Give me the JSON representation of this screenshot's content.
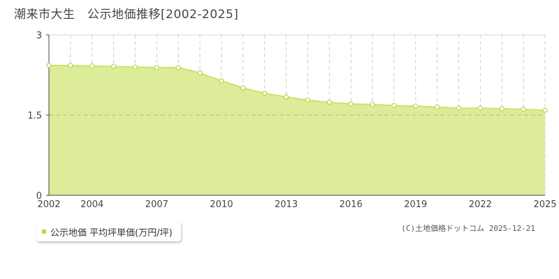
{
  "title": "潮来市大生　公示地価推移[2002-2025]",
  "legend": {
    "label": "公示地価 平均坪単価(万円/坪)",
    "color": "#b8dc3c"
  },
  "credit": "(C)土地価格ドットコム 2025-12-21",
  "colors": {
    "fill": "#dcec98",
    "line": "#c3e05a",
    "marker_stroke": "#b7d74b",
    "grid": "#cccccc",
    "axis": "#444444"
  },
  "chart_data": {
    "type": "area",
    "x": [
      2002,
      2003,
      2004,
      2005,
      2006,
      2007,
      2008,
      2009,
      2010,
      2011,
      2012,
      2013,
      2014,
      2015,
      2016,
      2017,
      2018,
      2019,
      2020,
      2021,
      2022,
      2023,
      2024,
      2025
    ],
    "series": [
      {
        "name": "公示地価 平均坪単価(万円/坪)",
        "values": [
          2.43,
          2.43,
          2.42,
          2.41,
          2.4,
          2.39,
          2.39,
          2.29,
          2.14,
          2.01,
          1.91,
          1.84,
          1.78,
          1.74,
          1.71,
          1.7,
          1.68,
          1.67,
          1.65,
          1.63,
          1.63,
          1.62,
          1.61,
          1.59
        ]
      }
    ],
    "xticks": [
      "2002",
      "2004",
      "2007",
      "2010",
      "2013",
      "2016",
      "2019",
      "2022",
      "2025"
    ],
    "yticks": [
      "0",
      "1.5",
      "3"
    ],
    "xlim": [
      2002,
      2025
    ],
    "ylim": [
      0,
      3
    ],
    "grid": true,
    "legend_position": "bottom-left"
  }
}
